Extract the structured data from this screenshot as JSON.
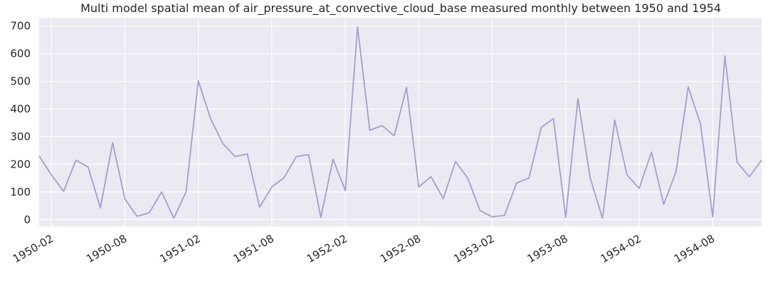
{
  "chart_data": {
    "type": "line",
    "title": "Multi model spatial mean of air_pressure_at_convective_cloud_base measured monthly between 1950 and 1954",
    "xlabel": "",
    "ylabel": "",
    "grid": true,
    "x_start": "1950-01",
    "x_end": "1954-12",
    "xlim": [
      "1950-01",
      "1954-12"
    ],
    "ylim": [
      -25,
      730
    ],
    "y_ticks": [
      0,
      100,
      200,
      300,
      400,
      500,
      600,
      700
    ],
    "x_ticks": [
      "1950-02",
      "1950-08",
      "1951-02",
      "1951-08",
      "1952-02",
      "1952-08",
      "1953-02",
      "1953-08",
      "1954-02",
      "1954-08"
    ],
    "colors": {
      "line": "#a39fcf",
      "plot_bg": "#eaeaf2",
      "grid": "#ffffff"
    },
    "series": [
      {
        "values": [
          230,
          162,
          102,
          215,
          190,
          42,
          278,
          75,
          12,
          25,
          100,
          5,
          100,
          502,
          365,
          275,
          228,
          237,
          45,
          118,
          152,
          228,
          235,
          8,
          218,
          105,
          697,
          323,
          340,
          303,
          478,
          118,
          155,
          76,
          210,
          150,
          33,
          10,
          15,
          133,
          150,
          333,
          365,
          8,
          437,
          150,
          5,
          360,
          162,
          113,
          244,
          55,
          172,
          480,
          347,
          10,
          592,
          207,
          155,
          215
        ]
      }
    ]
  }
}
